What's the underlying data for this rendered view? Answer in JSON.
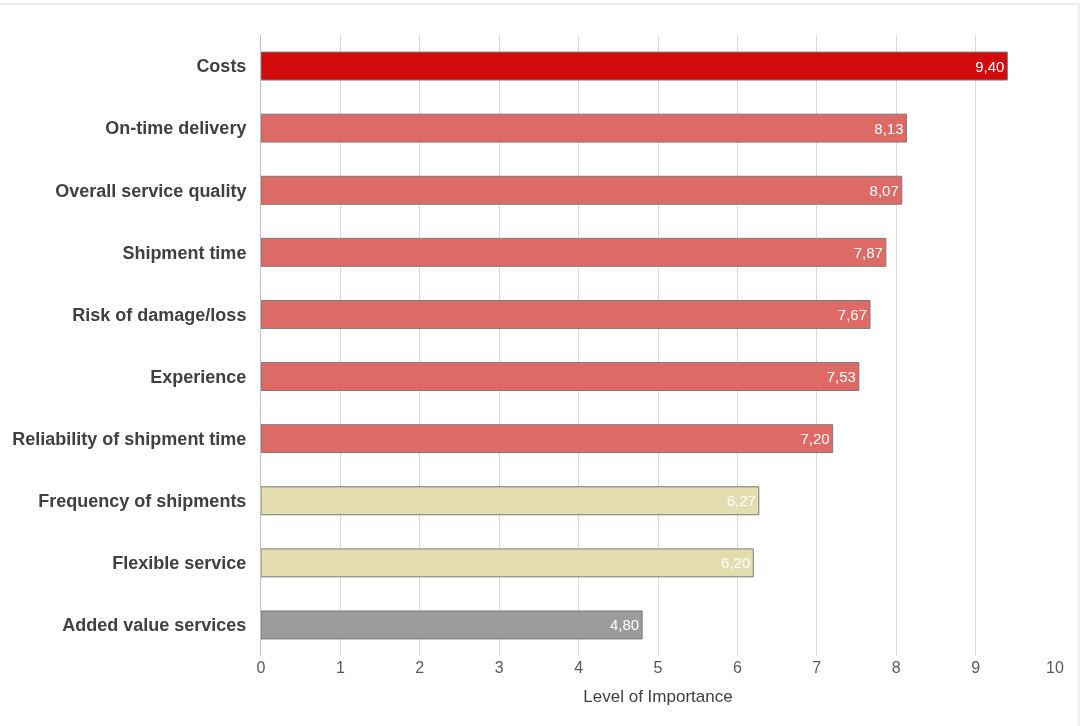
{
  "chart_data": {
    "type": "bar",
    "orientation": "horizontal",
    "xlabel": "Level of Importance",
    "categories": [
      "Costs",
      "On-time delivery",
      "Overall service quality",
      "Shipment time",
      "Risk of damage/loss",
      "Experience",
      "Reliability of shipment time",
      "Frequency of shipments",
      "Flexible service",
      "Added value services"
    ],
    "values": [
      9.4,
      8.13,
      8.07,
      7.87,
      7.67,
      7.53,
      7.2,
      6.27,
      6.2,
      4.8
    ],
    "value_labels": [
      "9,40",
      "8,13",
      "8,07",
      "7,87",
      "7,67",
      "7,53",
      "7,20",
      "6,27",
      "6,20",
      "4,80"
    ],
    "colors": [
      "#d20a0a",
      "#de6a66",
      "#de6a66",
      "#de6a66",
      "#de6a66",
      "#de6a66",
      "#de6a66",
      "#e3ddb0",
      "#e3ddb0",
      "#9c9c9e"
    ],
    "xlim": [
      0,
      10
    ],
    "xticks": [
      0,
      1,
      2,
      3,
      4,
      5,
      6,
      7,
      8,
      9,
      10
    ],
    "grid": "x",
    "legend": false
  }
}
